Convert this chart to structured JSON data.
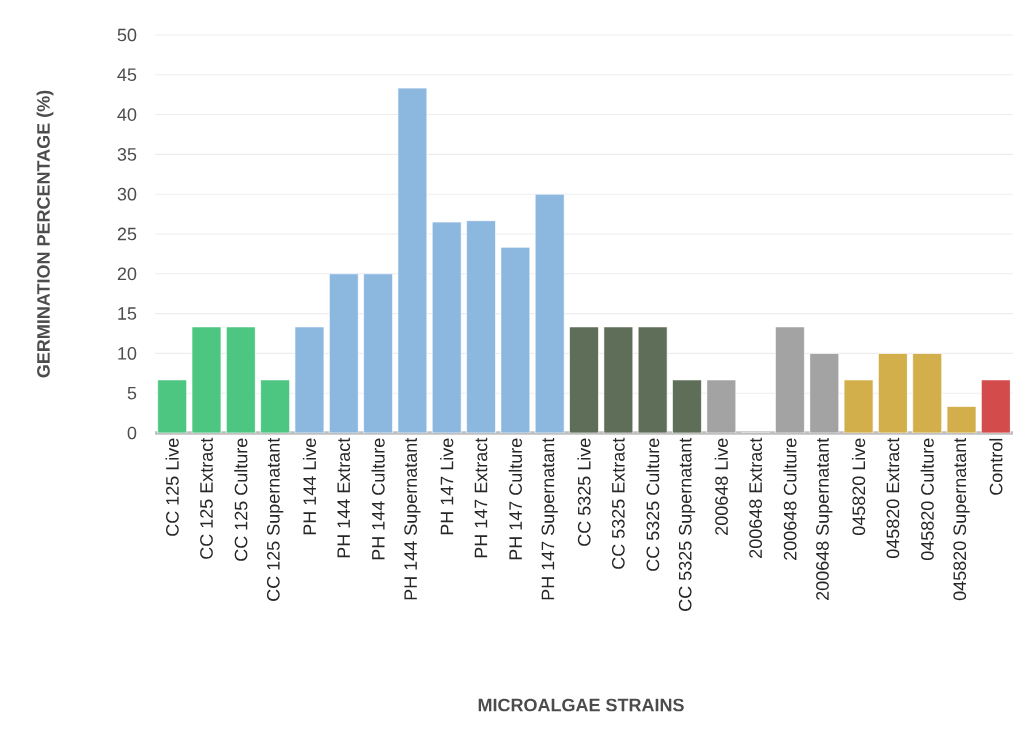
{
  "chart_data": {
    "type": "bar",
    "xlabel": "MICROALGAE STRAINS",
    "ylabel": "GERMINATION PERCENTAGE (%)",
    "categories": [
      "CC 125 Live",
      "CC 125 Extract",
      "CC 125 Culture",
      "CC 125 Supernatant",
      "PH 144 Live",
      "PH 144 Extract",
      "PH 144 Culture",
      "PH 144 Supernatant",
      "PH 147 Live",
      "PH 147 Extract",
      "PH 147 Culture",
      "PH 147 Supernatant",
      "CC 5325 Live",
      "CC 5325 Extract",
      "CC 5325 Culture",
      "CC 5325 Supernatant",
      "200648 Live",
      "200648 Extract",
      "200648 Culture",
      "200648 Supernatant",
      "045820 Live",
      "045820 Extract",
      "045820 Culture",
      "045820 Supernatant",
      "Control"
    ],
    "values": [
      6.67,
      13.33,
      13.33,
      6.67,
      13.33,
      20,
      20,
      43.33,
      26.5,
      26.67,
      23.33,
      30,
      13.33,
      13.33,
      13.33,
      6.67,
      6.67,
      0,
      13.33,
      10,
      6.67,
      10,
      10,
      3.33,
      6.67
    ],
    "colors": [
      "#4cc680",
      "#4cc680",
      "#4cc680",
      "#4cc680",
      "#8cb8e0",
      "#8cb8e0",
      "#8cb8e0",
      "#8cb8e0",
      "#8cb8e0",
      "#8cb8e0",
      "#8cb8e0",
      "#8cb8e0",
      "#5f6e58",
      "#5f6e58",
      "#5f6e58",
      "#5f6e58",
      "#a3a3a3",
      "#a3a3a3",
      "#a3a3a3",
      "#a3a3a3",
      "#d3af4b",
      "#d3af4b",
      "#d3af4b",
      "#d3af4b",
      "#d44b4b"
    ],
    "ylim": [
      0,
      50
    ],
    "yticks": [
      0,
      5,
      10,
      15,
      20,
      25,
      30,
      35,
      40,
      45,
      50
    ],
    "grid": "y"
  }
}
